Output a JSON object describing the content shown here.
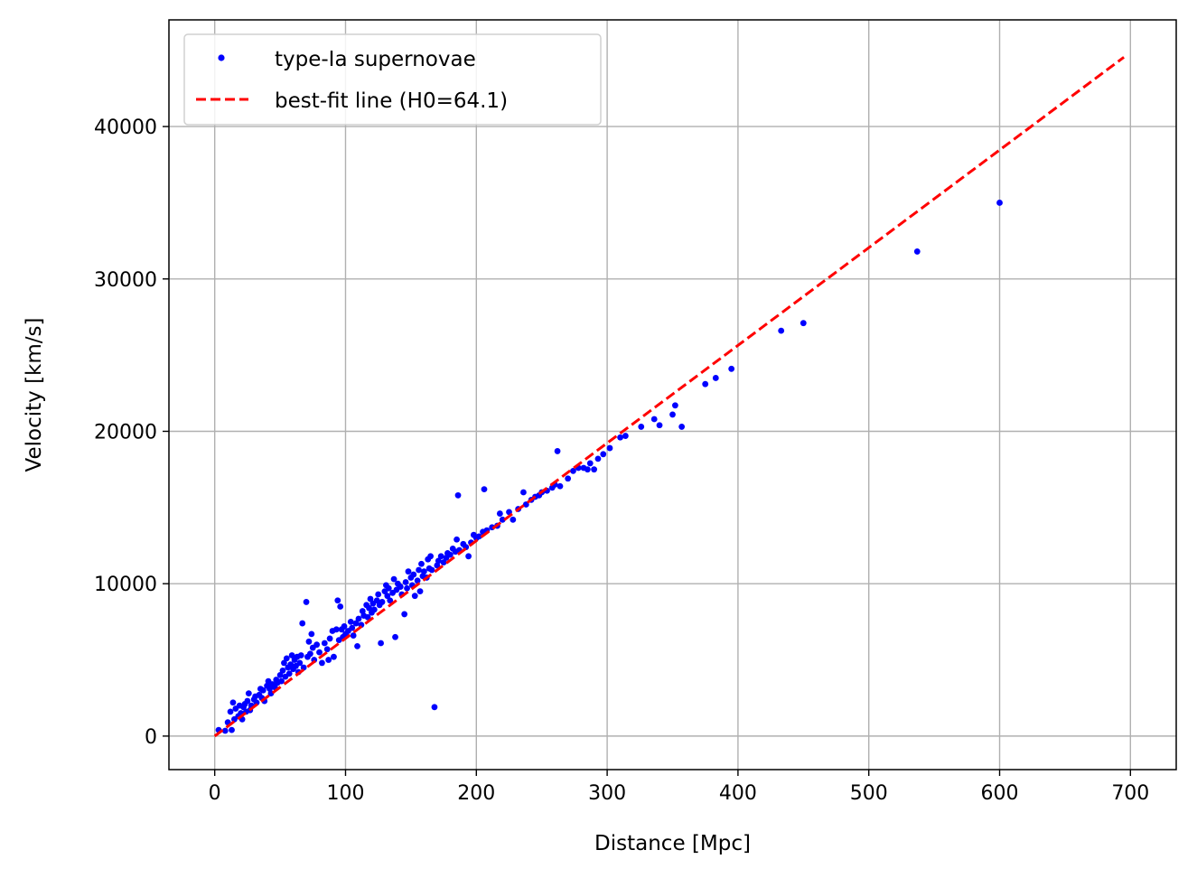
{
  "chart_data": {
    "type": "scatter",
    "title": "",
    "xlabel": "Distance [Mpc]",
    "ylabel": "Velocity [km/s]",
    "xlim": [
      -35,
      735
    ],
    "ylim": [
      -2200,
      47000
    ],
    "xticks": [
      0,
      100,
      200,
      300,
      400,
      500,
      600,
      700
    ],
    "yticks": [
      0,
      10000,
      20000,
      30000,
      40000
    ],
    "grid": true,
    "legend_position": "top-left",
    "series": [
      {
        "name": "type-Ia supernovae",
        "kind": "points",
        "color": "#0000ff",
        "points": [
          [
            3,
            400
          ],
          [
            8,
            350
          ],
          [
            10,
            900
          ],
          [
            12,
            1600
          ],
          [
            13,
            400
          ],
          [
            14,
            2200
          ],
          [
            15,
            1100
          ],
          [
            16,
            1800
          ],
          [
            18,
            1300
          ],
          [
            19,
            2000
          ],
          [
            20,
            1500
          ],
          [
            21,
            1100
          ],
          [
            22,
            1900
          ],
          [
            23,
            2100
          ],
          [
            24,
            1600
          ],
          [
            25,
            2300
          ],
          [
            26,
            2800
          ],
          [
            27,
            1700
          ],
          [
            28,
            2000
          ],
          [
            30,
            2400
          ],
          [
            31,
            2600
          ],
          [
            32,
            2200
          ],
          [
            34,
            2700
          ],
          [
            35,
            3100
          ],
          [
            36,
            2500
          ],
          [
            37,
            3000
          ],
          [
            38,
            2300
          ],
          [
            40,
            3300
          ],
          [
            41,
            3600
          ],
          [
            42,
            3100
          ],
          [
            43,
            2800
          ],
          [
            44,
            3400
          ],
          [
            46,
            3200
          ],
          [
            47,
            3700
          ],
          [
            48,
            3500
          ],
          [
            50,
            4000
          ],
          [
            51,
            3600
          ],
          [
            52,
            4300
          ],
          [
            53,
            4800
          ],
          [
            54,
            3900
          ],
          [
            55,
            5100
          ],
          [
            56,
            4500
          ],
          [
            57,
            4100
          ],
          [
            58,
            4700
          ],
          [
            59,
            5300
          ],
          [
            60,
            4400
          ],
          [
            61,
            5000
          ],
          [
            62,
            4600
          ],
          [
            63,
            5200
          ],
          [
            64,
            4200
          ],
          [
            65,
            4800
          ],
          [
            66,
            5300
          ],
          [
            67,
            7400
          ],
          [
            68,
            4500
          ],
          [
            70,
            8800
          ],
          [
            71,
            5200
          ],
          [
            72,
            6200
          ],
          [
            73,
            5400
          ],
          [
            74,
            6700
          ],
          [
            75,
            5800
          ],
          [
            76,
            5000
          ],
          [
            78,
            6000
          ],
          [
            80,
            5500
          ],
          [
            82,
            4800
          ],
          [
            84,
            6100
          ],
          [
            86,
            5700
          ],
          [
            87,
            5000
          ],
          [
            88,
            6400
          ],
          [
            90,
            6900
          ],
          [
            91,
            5200
          ],
          [
            93,
            7000
          ],
          [
            94,
            8900
          ],
          [
            95,
            6300
          ],
          [
            96,
            8500
          ],
          [
            97,
            7000
          ],
          [
            98,
            6500
          ],
          [
            99,
            7200
          ],
          [
            100,
            6700
          ],
          [
            102,
            6900
          ],
          [
            104,
            7500
          ],
          [
            105,
            7100
          ],
          [
            106,
            6600
          ],
          [
            108,
            7400
          ],
          [
            109,
            5900
          ],
          [
            110,
            7700
          ],
          [
            112,
            7300
          ],
          [
            113,
            8200
          ],
          [
            114,
            7900
          ],
          [
            116,
            8600
          ],
          [
            117,
            7800
          ],
          [
            118,
            8400
          ],
          [
            119,
            9000
          ],
          [
            120,
            8100
          ],
          [
            121,
            8700
          ],
          [
            122,
            8300
          ],
          [
            124,
            8900
          ],
          [
            125,
            9300
          ],
          [
            126,
            8600
          ],
          [
            127,
            6100
          ],
          [
            128,
            8800
          ],
          [
            130,
            9500
          ],
          [
            131,
            9900
          ],
          [
            132,
            9200
          ],
          [
            133,
            9700
          ],
          [
            134,
            8900
          ],
          [
            136,
            9400
          ],
          [
            137,
            10300
          ],
          [
            138,
            6500
          ],
          [
            139,
            9600
          ],
          [
            140,
            10000
          ],
          [
            142,
            9800
          ],
          [
            143,
            9300
          ],
          [
            145,
            8000
          ],
          [
            146,
            10100
          ],
          [
            147,
            9700
          ],
          [
            148,
            10800
          ],
          [
            150,
            10400
          ],
          [
            151,
            9900
          ],
          [
            152,
            10600
          ],
          [
            153,
            9200
          ],
          [
            155,
            10200
          ],
          [
            156,
            10900
          ],
          [
            157,
            9500
          ],
          [
            158,
            11300
          ],
          [
            159,
            10500
          ],
          [
            160,
            10800
          ],
          [
            162,
            10400
          ],
          [
            163,
            11600
          ],
          [
            164,
            11000
          ],
          [
            165,
            11800
          ],
          [
            166,
            10900
          ],
          [
            168,
            1900
          ],
          [
            170,
            11200
          ],
          [
            171,
            11500
          ],
          [
            173,
            11800
          ],
          [
            175,
            11400
          ],
          [
            177,
            11700
          ],
          [
            178,
            12000
          ],
          [
            180,
            11900
          ],
          [
            182,
            12300
          ],
          [
            184,
            12100
          ],
          [
            185,
            12900
          ],
          [
            186,
            15800
          ],
          [
            187,
            12200
          ],
          [
            190,
            12600
          ],
          [
            192,
            12400
          ],
          [
            194,
            11800
          ],
          [
            196,
            12700
          ],
          [
            198,
            13200
          ],
          [
            200,
            13000
          ],
          [
            202,
            13100
          ],
          [
            205,
            13400
          ],
          [
            206,
            16200
          ],
          [
            208,
            13500
          ],
          [
            212,
            13700
          ],
          [
            216,
            13800
          ],
          [
            218,
            14600
          ],
          [
            220,
            14200
          ],
          [
            225,
            14700
          ],
          [
            228,
            14200
          ],
          [
            232,
            14900
          ],
          [
            236,
            16000
          ],
          [
            238,
            15200
          ],
          [
            242,
            15500
          ],
          [
            245,
            15700
          ],
          [
            248,
            15800
          ],
          [
            250,
            16000
          ],
          [
            254,
            16100
          ],
          [
            258,
            16300
          ],
          [
            260,
            16500
          ],
          [
            262,
            18700
          ],
          [
            264,
            16400
          ],
          [
            270,
            16900
          ],
          [
            274,
            17400
          ],
          [
            278,
            17600
          ],
          [
            282,
            17600
          ],
          [
            285,
            17500
          ],
          [
            287,
            17900
          ],
          [
            290,
            17500
          ],
          [
            293,
            18200
          ],
          [
            297,
            18500
          ],
          [
            302,
            18900
          ],
          [
            310,
            19600
          ],
          [
            314,
            19700
          ],
          [
            326,
            20300
          ],
          [
            336,
            20800
          ],
          [
            340,
            20400
          ],
          [
            350,
            21100
          ],
          [
            352,
            21700
          ],
          [
            357,
            20300
          ],
          [
            375,
            23100
          ],
          [
            383,
            23500
          ],
          [
            395,
            24100
          ],
          [
            433,
            26600
          ],
          [
            450,
            27100
          ],
          [
            537,
            31800
          ],
          [
            600,
            35000
          ]
        ]
      },
      {
        "name": "best-fit line (H0=64.1)",
        "kind": "dashed-line",
        "color": "#ff0000",
        "x": [
          0,
          695
        ],
        "y": [
          0,
          44550
        ]
      }
    ]
  }
}
